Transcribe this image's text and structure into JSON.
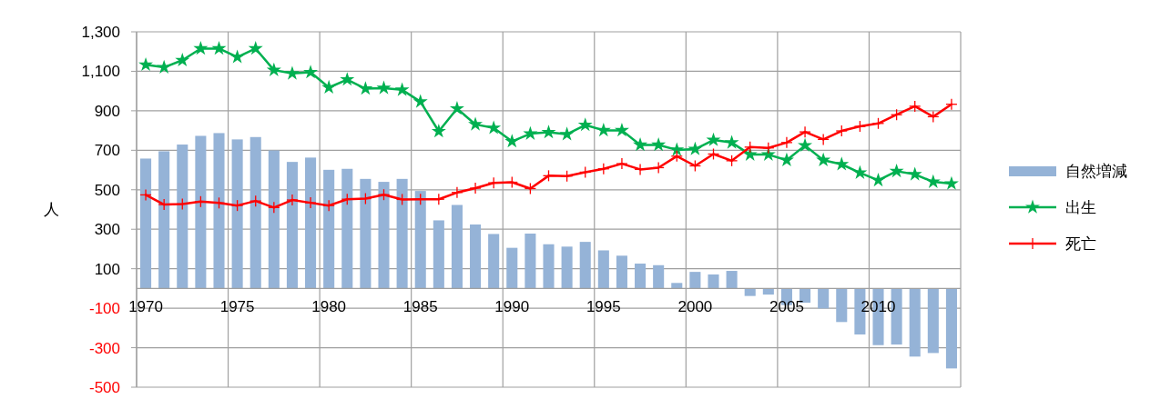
{
  "chart_data": {
    "type": "bar",
    "ylabel": "人",
    "categories": [
      "1970",
      null,
      null,
      null,
      null,
      "1975",
      null,
      null,
      null,
      null,
      "1980",
      null,
      null,
      null,
      null,
      "1985",
      null,
      null,
      null,
      null,
      "1990",
      null,
      null,
      null,
      null,
      "1995",
      null,
      null,
      null,
      null,
      "2000",
      null,
      null,
      null,
      null,
      "2005",
      null,
      null,
      null,
      null,
      "2010",
      null,
      null,
      null,
      null
    ],
    "series": [
      {
        "name": "自然増減",
        "color": "#95b3d7",
        "values": [
          658,
          695,
          729,
          773,
          787,
          755,
          767,
          699,
          641,
          663,
          601,
          606,
          555,
          540,
          555,
          494,
          345,
          423,
          324,
          276,
          206,
          278,
          224,
          212,
          236,
          193,
          166,
          126,
          118,
          28,
          84,
          71,
          89,
          -38,
          -31,
          -84,
          -72,
          -101,
          -170,
          -233,
          -287,
          -284,
          -345,
          -327,
          -405
        ]
      },
      {
        "name": "出生",
        "type": "line",
        "color": "#00b050",
        "marker": "star",
        "values": [
          1133,
          1120,
          1156,
          1215,
          1215,
          1172,
          1215,
          1106,
          1089,
          1095,
          1018,
          1058,
          1012,
          1015,
          1006,
          946,
          796,
          911,
          831,
          813,
          745,
          784,
          791,
          781,
          828,
          801,
          801,
          727,
          727,
          702,
          706,
          752,
          739,
          678,
          678,
          650,
          724,
          650,
          629,
          586,
          548,
          594,
          578,
          540,
          531
        ]
      },
      {
        "name": "死亡",
        "type": "line",
        "color": "#ff0000",
        "marker": "cross",
        "values": [
          474,
          425,
          428,
          440,
          433,
          420,
          443,
          410,
          448,
          434,
          420,
          452,
          455,
          475,
          451,
          452,
          452,
          486,
          508,
          535,
          538,
          506,
          571,
          569,
          589,
          606,
          632,
          603,
          612,
          670,
          621,
          681,
          647,
          716,
          712,
          739,
          793,
          755,
          798,
          821,
          836,
          880,
          923,
          870,
          933
        ]
      }
    ],
    "ylim": [
      -500,
      1300
    ],
    "yticks": [
      {
        "value": -500,
        "label": "-500"
      },
      {
        "value": -300,
        "label": "-300"
      },
      {
        "value": -100,
        "label": "-100"
      },
      {
        "value": 100,
        "label": "100"
      },
      {
        "value": 300,
        "label": "300"
      },
      {
        "value": 500,
        "label": "500"
      },
      {
        "value": 700,
        "label": "700"
      },
      {
        "value": 900,
        "label": "900"
      },
      {
        "value": 1100,
        "label": "1,100"
      },
      {
        "value": 1300,
        "label": "1,300"
      }
    ],
    "grid": true,
    "legend": "right"
  }
}
